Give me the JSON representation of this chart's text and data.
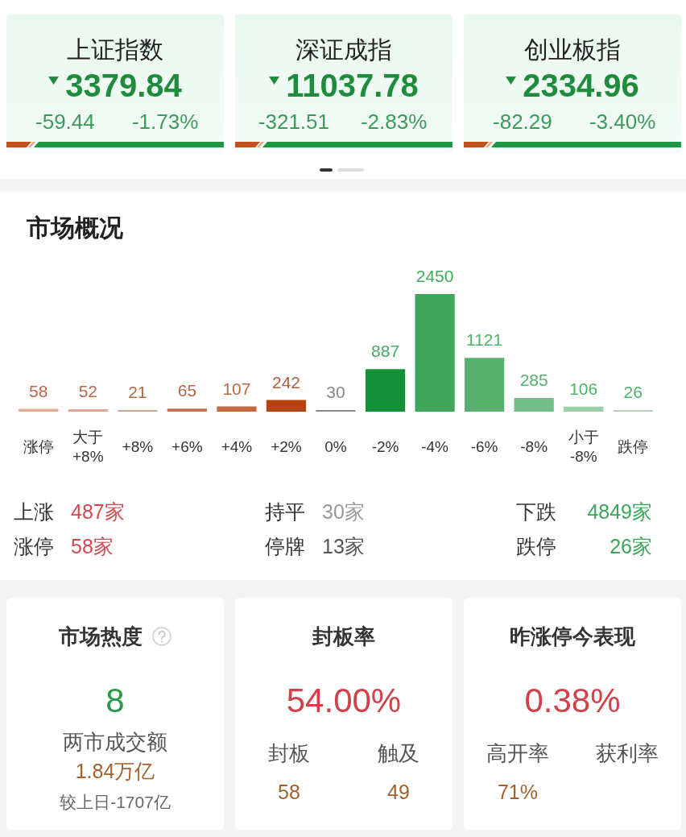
{
  "chart_data": [
    {
      "type": "other",
      "title": "上证指数",
      "annotations": [
        "3379.84",
        "-59.44",
        "-1.73%"
      ]
    },
    {
      "type": "other",
      "title": "深证成指",
      "annotations": [
        "11037.78",
        "-321.51",
        "-2.83%"
      ]
    },
    {
      "type": "other",
      "title": "创业板指",
      "annotations": [
        "2334.96",
        "-82.29",
        "-3.40%"
      ]
    },
    {
      "type": "bar",
      "title": "市场概况",
      "categories": [
        "涨停",
        "大于\n+8%",
        "+8%",
        "+6%",
        "+4%",
        "+2%",
        "0%",
        "-2%",
        "-4%",
        "-6%",
        "-8%",
        "小于\n-8%",
        "跌停"
      ],
      "values": [
        58,
        52,
        21,
        65,
        107,
        242,
        30,
        887,
        2450,
        1121,
        285,
        106,
        26
      ],
      "colors": [
        "#e5ab94",
        "#deaa94",
        "#c9a597",
        "#c9714f",
        "#c46a43",
        "#b8420f",
        "#888888",
        "#14923a",
        "#3fa65a",
        "#58b06f",
        "#74be87",
        "#99d0a7",
        "#b4cfbc"
      ],
      "data_labels": true,
      "annotations": [
        "上涨",
        "487家",
        "持平",
        "30家",
        "下跌",
        "4849家",
        "涨停",
        "58家",
        "停牌",
        "13家",
        "跌停",
        "26家"
      ]
    },
    {
      "type": "other",
      "title": "市场热度",
      "annotations": [
        "8",
        "两市成交额",
        "1.84万亿",
        "较上日-1707亿"
      ]
    },
    {
      "type": "other",
      "title": "封板率",
      "annotations": [
        "54.00%",
        "封板",
        "触及",
        "58",
        "49"
      ]
    },
    {
      "type": "other",
      "title": "昨涨停今表现",
      "annotations": [
        "0.38%",
        "高开率",
        "获利率",
        "71%"
      ]
    }
  ]
}
